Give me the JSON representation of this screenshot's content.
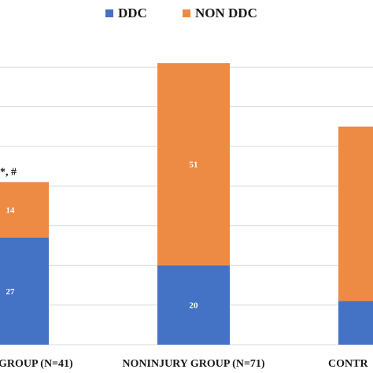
{
  "chart_data": {
    "type": "bar",
    "stacked": true,
    "categories": [
      "GROUP (N=41)",
      "NONINJURY GROUP (N=71)",
      "CONTR"
    ],
    "series": [
      {
        "name": "DDC",
        "values": [
          27,
          20,
          11
        ]
      },
      {
        "name": "NON DDC",
        "values": [
          14,
          51,
          44
        ]
      }
    ],
    "data_labels": [
      {
        "category": "GROUP (N=41)",
        "series": "DDC",
        "text": "27"
      },
      {
        "category": "GROUP (N=41)",
        "series": "NON DDC",
        "text": "14"
      },
      {
        "category": "NONINJURY GROUP (N=71)",
        "series": "DDC",
        "text": "20"
      },
      {
        "category": "NONINJURY GROUP (N=71)",
        "series": "NON DDC",
        "text": "51"
      }
    ],
    "annotations": [
      {
        "category": "GROUP (N=41)",
        "text": "*, #"
      }
    ],
    "title": "",
    "xlabel": "",
    "ylabel": "",
    "ylim": [
      0,
      75
    ],
    "grid": true,
    "legend_position": "top",
    "colors": {
      "DDC": "#4472C4",
      "NON DDC": "#ED8B45"
    },
    "gridline_color": "#d9d9d9"
  }
}
